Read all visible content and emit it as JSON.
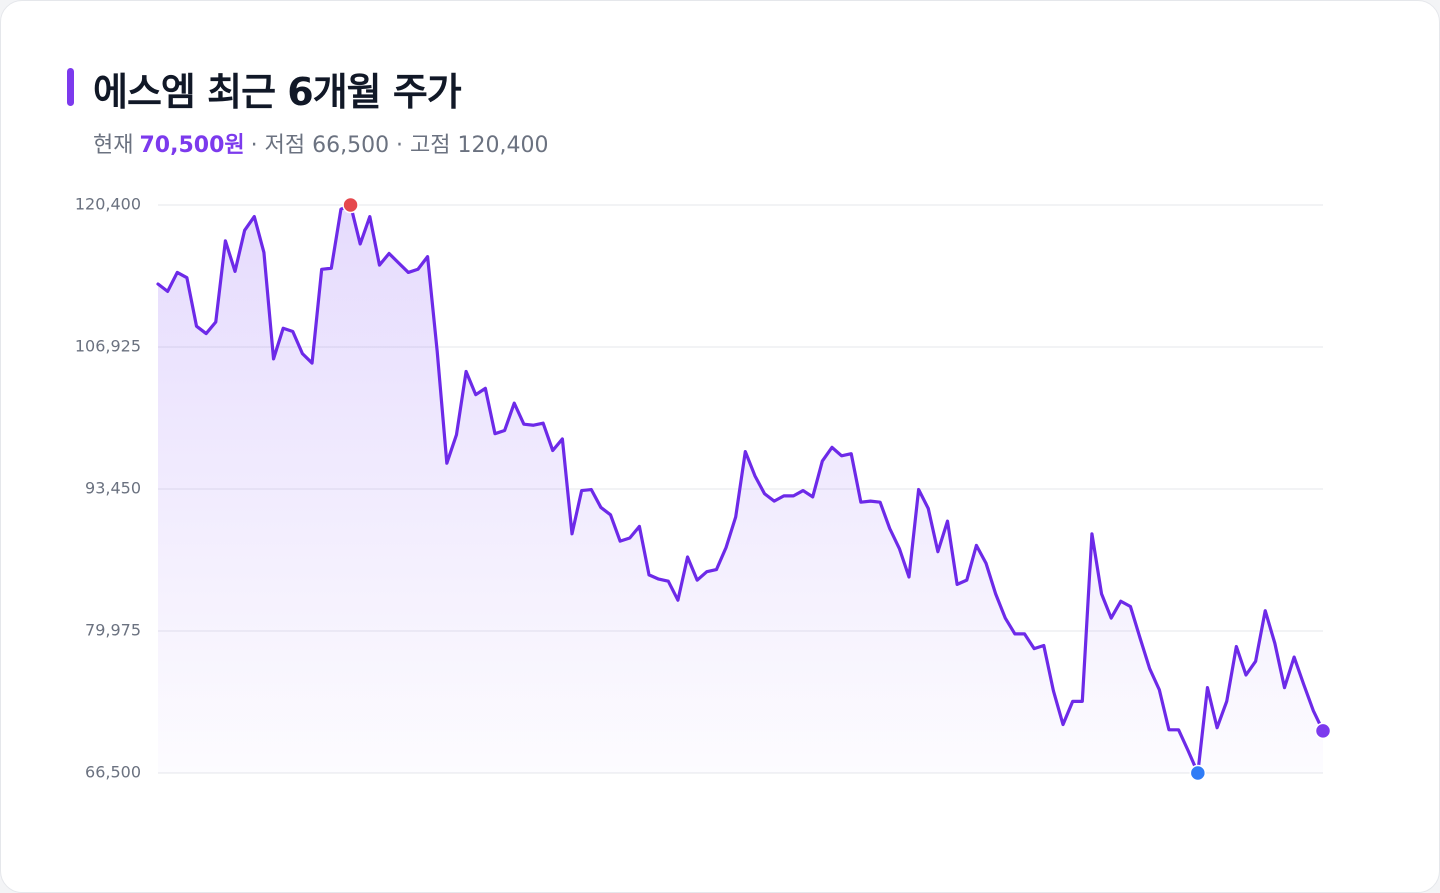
{
  "chart_data": {
    "type": "line",
    "title": "에스엠 최근 6개월 주가",
    "summary": [
      "현재",
      "70,500원",
      "· 저점 66,500 · 고점 120,400"
    ],
    "series": [
      {
        "name": "에스엠",
        "color": "#6d2ae8",
        "values": [
          112900,
          112200,
          114000,
          113500,
          108900,
          108200,
          109300,
          117000,
          114100,
          118000,
          119300,
          115900,
          105800,
          108700,
          108400,
          106300,
          105400,
          114300,
          114400,
          120000,
          120400,
          116700,
          119300,
          114700,
          115800,
          114900,
          114000,
          114300,
          115500,
          106500,
          95900,
          98600,
          104600,
          102400,
          103000,
          98700,
          99000,
          101600,
          99600,
          99500,
          99700,
          97100,
          98200,
          89200,
          93300,
          93400,
          91700,
          91000,
          88500,
          88800,
          89900,
          85300,
          84900,
          84700,
          82900,
          87000,
          84800,
          85600,
          85800,
          87900,
          90800,
          97000,
          94700,
          93000,
          92300,
          92800,
          92800,
          93300,
          92700,
          96100,
          97400,
          96600,
          96800,
          92200,
          92300,
          92200,
          89700,
          87800,
          85100,
          93400,
          91600,
          87500,
          90400,
          84400,
          84800,
          88100,
          86400,
          83500,
          81200,
          79700,
          79700,
          78300,
          78600,
          74300,
          71100,
          73300,
          73300,
          89200,
          83500,
          81200,
          82800,
          82300,
          79300,
          76400,
          74400,
          70600,
          70600,
          68600,
          66500,
          74600,
          70800,
          73300,
          78500,
          75800,
          77100,
          81900,
          78800,
          74600,
          77500,
          74900,
          72400,
          70500
        ]
      }
    ],
    "ylim": [
      66500,
      120400
    ],
    "yticks": [
      {
        "value": 66500,
        "label": "66,500"
      },
      {
        "value": 79975,
        "label": "79,975"
      },
      {
        "value": 93450,
        "label": "93,450"
      },
      {
        "value": 106925,
        "label": "106,925"
      },
      {
        "value": 120400,
        "label": "120,400"
      }
    ],
    "grid": true,
    "high_color": "#e5484d",
    "low_color": "#2f7cf6",
    "last_color": "#7c3aed"
  }
}
